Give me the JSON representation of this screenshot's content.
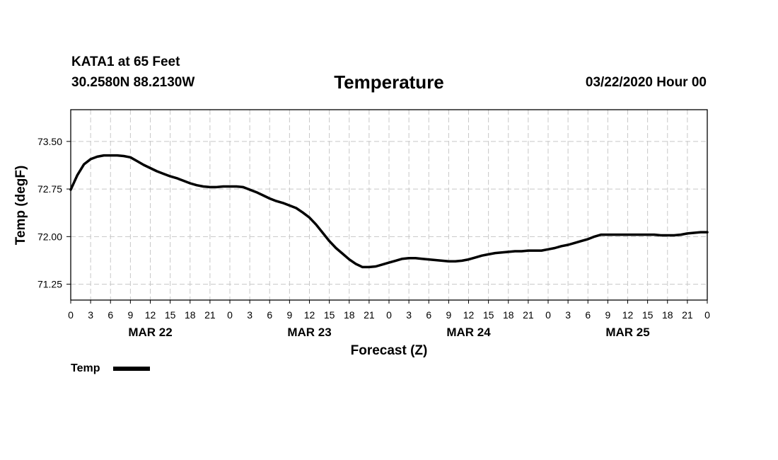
{
  "header": {
    "station": "KATA1 at 65 Feet",
    "coords": "30.2580N 88.2130W",
    "valid": "03/22/2020 Hour 00"
  },
  "chart_data": {
    "type": "line",
    "title": "Temperature",
    "xlabel": "Forecast (Z)",
    "ylabel": "Temp (degF)",
    "ylim": [
      71.0,
      74.0
    ],
    "xlim": [
      0,
      96
    ],
    "yticks": [
      71.25,
      72.0,
      72.75,
      73.5
    ],
    "ytick_labels": [
      "71.25",
      "72.00",
      "72.75",
      "73.50"
    ],
    "xtick_hours": [
      0,
      3,
      6,
      9,
      12,
      15,
      18,
      21,
      24,
      27,
      30,
      33,
      36,
      39,
      42,
      45,
      48,
      51,
      54,
      57,
      60,
      63,
      66,
      69,
      72,
      75,
      78,
      81,
      84,
      87,
      90,
      93,
      96
    ],
    "xtick_labels": [
      "0",
      "3",
      "6",
      "9",
      "12",
      "15",
      "18",
      "21",
      "0",
      "3",
      "6",
      "9",
      "12",
      "15",
      "18",
      "21",
      "0",
      "3",
      "6",
      "9",
      "12",
      "15",
      "18",
      "21",
      "0",
      "3",
      "6",
      "9",
      "12",
      "15",
      "18",
      "21",
      "0"
    ],
    "day_labels": [
      {
        "hour": 12,
        "label": "MAR 22"
      },
      {
        "hour": 36,
        "label": "MAR 23"
      },
      {
        "hour": 60,
        "label": "MAR 24"
      },
      {
        "hour": 84,
        "label": "MAR 25"
      }
    ],
    "grid": true,
    "legend": "bottom-left",
    "series": [
      {
        "name": "Temp",
        "x": [
          0,
          1,
          2,
          3,
          4,
          5,
          6,
          7,
          8,
          9,
          10,
          11,
          12,
          13,
          14,
          15,
          16,
          17,
          18,
          19,
          20,
          21,
          22,
          23,
          24,
          25,
          26,
          27,
          28,
          29,
          30,
          31,
          32,
          33,
          34,
          35,
          36,
          37,
          38,
          39,
          40,
          41,
          42,
          43,
          44,
          45,
          46,
          47,
          48,
          49,
          50,
          51,
          52,
          53,
          54,
          55,
          56,
          57,
          58,
          59,
          60,
          61,
          62,
          63,
          64,
          65,
          66,
          67,
          68,
          69,
          70,
          71,
          72,
          73,
          74,
          75,
          76,
          77,
          78,
          79,
          80,
          81,
          82,
          83,
          84,
          85,
          86,
          87,
          88,
          89,
          90,
          91,
          92,
          93,
          94,
          95,
          96
        ],
        "values": [
          72.74,
          72.97,
          73.14,
          73.22,
          73.26,
          73.28,
          73.28,
          73.28,
          73.27,
          73.25,
          73.19,
          73.13,
          73.08,
          73.03,
          72.99,
          72.95,
          72.92,
          72.88,
          72.84,
          72.81,
          72.79,
          72.78,
          72.78,
          72.79,
          72.79,
          72.79,
          72.78,
          72.74,
          72.7,
          72.65,
          72.6,
          72.56,
          72.53,
          72.49,
          72.45,
          72.38,
          72.3,
          72.19,
          72.06,
          71.93,
          71.82,
          71.73,
          71.64,
          71.57,
          71.52,
          71.52,
          71.53,
          71.56,
          71.59,
          71.62,
          71.65,
          71.66,
          71.66,
          71.65,
          71.64,
          71.63,
          71.62,
          71.61,
          71.61,
          71.62,
          71.64,
          71.67,
          71.7,
          71.72,
          71.74,
          71.75,
          71.76,
          71.77,
          71.77,
          71.78,
          71.78,
          71.78,
          71.8,
          71.82,
          71.85,
          71.87,
          71.9,
          71.93,
          71.96,
          72.0,
          72.03,
          72.03,
          72.03,
          72.03,
          72.03,
          72.03,
          72.03,
          72.03,
          72.03,
          72.02,
          72.02,
          72.02,
          72.03,
          72.05,
          72.06,
          72.07,
          72.07
        ]
      }
    ]
  }
}
